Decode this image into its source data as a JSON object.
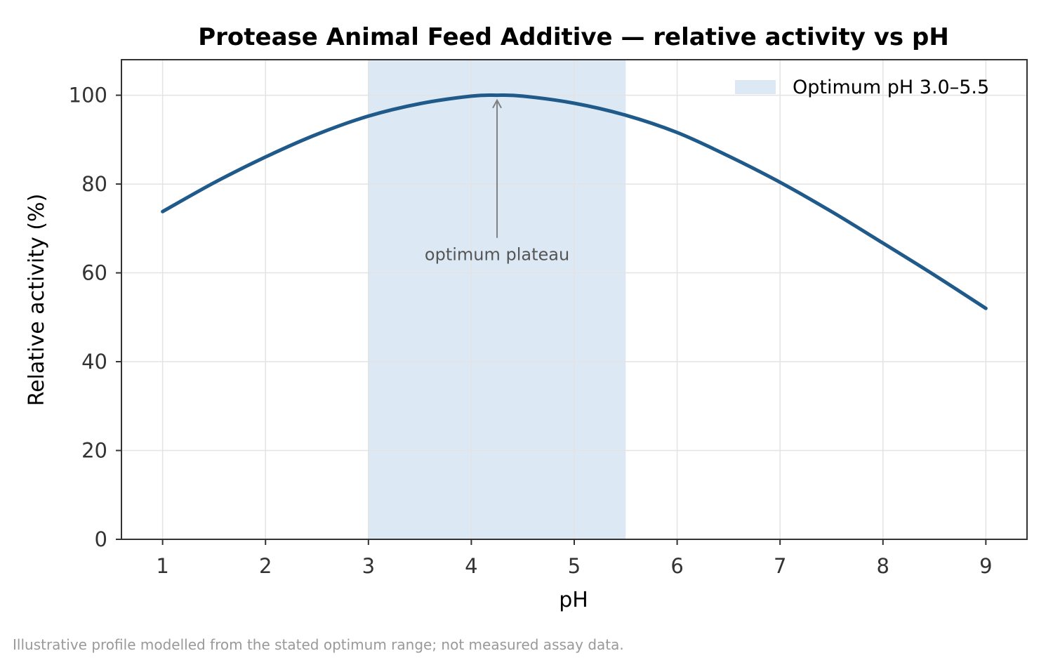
{
  "chart_data": {
    "type": "line",
    "title": "Protease Animal Feed Additive — relative activity vs pH",
    "xlabel": "pH",
    "ylabel": "Relative activity (%)",
    "xlim": [
      0.6,
      9.4
    ],
    "ylim": [
      0,
      108
    ],
    "xticks": [
      1,
      2,
      3,
      4,
      5,
      6,
      7,
      8,
      9
    ],
    "yticks": [
      0,
      20,
      40,
      60,
      80,
      100
    ],
    "grid": true,
    "legend_position": "top-right",
    "series": [
      {
        "color": "#1f5a8a",
        "x": [
          1.0,
          1.5,
          2.0,
          2.5,
          3.0,
          3.5,
          4.0,
          4.25,
          4.5,
          5.0,
          5.5,
          6.0,
          6.5,
          7.0,
          7.5,
          8.0,
          8.5,
          9.0
        ],
        "y": [
          73.8,
          80.3,
          86.1,
          91.2,
          95.3,
          98.1,
          99.8,
          100.0,
          99.8,
          98.2,
          95.5,
          91.6,
          86.3,
          80.4,
          73.8,
          66.7,
          59.5,
          52.0
        ]
      }
    ],
    "shaded_region": {
      "x_start": 3.0,
      "x_end": 5.5,
      "label": "Optimum pH 3.0–5.5",
      "color": "#dce9f4"
    },
    "annotation": {
      "text": "optimum plateau",
      "point_x": 4.25,
      "point_y": 99.5,
      "text_x": 4.25,
      "text_y": 62.5
    }
  },
  "footnote": "Illustrative profile modelled from the stated optimum range; not measured assay data."
}
